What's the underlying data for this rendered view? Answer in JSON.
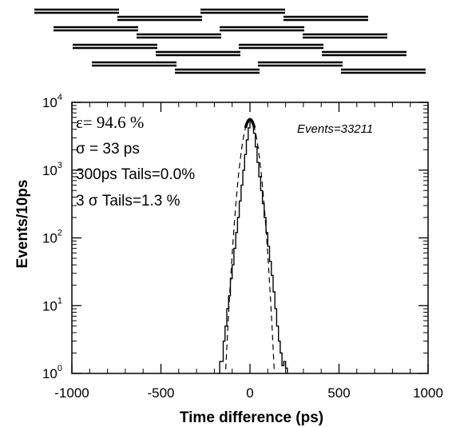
{
  "chart_data": {
    "type": "line",
    "xlabel": "Time difference (ps)",
    "ylabel": "Events/10ps",
    "xlim": [
      -1000,
      1000
    ],
    "ylim": [
      1,
      10000
    ],
    "yscale": "log",
    "x_ticks": [
      "-1000",
      "-500",
      "0",
      "500",
      "1000"
    ],
    "y_ticks": [
      {
        "base": "10",
        "exp": "0"
      },
      {
        "base": "10",
        "exp": "1"
      },
      {
        "base": "10",
        "exp": "2"
      },
      {
        "base": "10",
        "exp": "3"
      },
      {
        "base": "10",
        "exp": "4"
      }
    ],
    "annotations": {
      "efficiency": "ε= 94.6 %",
      "sigma": "σ = 33 ps",
      "tails_300": "300ps Tails=0.0%",
      "tails_3sigma": "3 σ Tails=1.3 %",
      "events": "Events=33211"
    },
    "series": [
      {
        "style": "histogram",
        "x": [
          -170,
          -150,
          -140,
          -130,
          -120,
          -110,
          -100,
          -90,
          -80,
          -70,
          -60,
          -50,
          -40,
          -30,
          -20,
          -10,
          0,
          10,
          20,
          30,
          40,
          50,
          60,
          70,
          80,
          90,
          100,
          110,
          120,
          130,
          140,
          150,
          160,
          170,
          180,
          190,
          200
        ],
        "values": [
          1.5,
          3,
          5,
          9,
          14,
          25,
          40,
          70,
          120,
          200,
          350,
          600,
          1000,
          1700,
          2800,
          4200,
          5600,
          5000,
          3500,
          2200,
          1300,
          800,
          500,
          320,
          200,
          120,
          75,
          45,
          28,
          16,
          9,
          5,
          3,
          2,
          1.3,
          1.5,
          1.2
        ]
      },
      {
        "style": "gaussian-fit",
        "amplitude": 5600,
        "mean": 0,
        "sigma": 33
      }
    ]
  },
  "diagram": {
    "rows": [
      {
        "offset": 0,
        "segments": 4
      },
      {
        "offset": 1,
        "segments": 4
      },
      {
        "offset": 2,
        "segments": 4
      },
      {
        "offset": 3,
        "segments": 4
      }
    ]
  }
}
